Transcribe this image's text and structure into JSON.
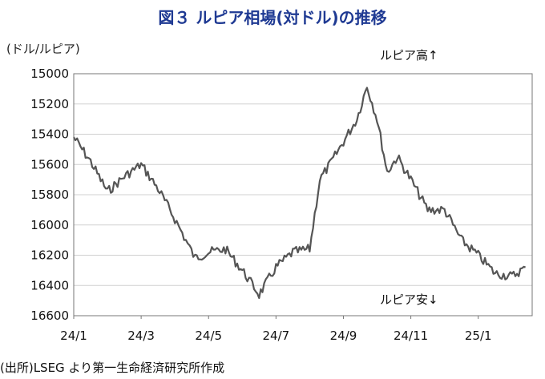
{
  "chart_data": {
    "type": "line",
    "title": "図３ ルピア相場(対ドル)の推移",
    "ylabel": "(ドル/ルピア)",
    "ylim": [
      15000,
      16600
    ],
    "y_inverted": true,
    "yticks": [
      15000,
      15200,
      15400,
      15600,
      15800,
      16000,
      16200,
      16400,
      16600
    ],
    "xticks": [
      "24/1",
      "24/3",
      "24/5",
      "24/7",
      "24/9",
      "24/11",
      "25/1"
    ],
    "grid": "horizontal",
    "annotations": {
      "top": "ルピア高↑",
      "bottom": "ルピア安↓"
    },
    "series": [
      {
        "color": "#555555",
        "points": [
          [
            "24/1",
            15420
          ],
          [
            "24/1.5",
            15580
          ],
          [
            "24/2",
            15780
          ],
          [
            "24/2.5",
            15680
          ],
          [
            "24/3",
            15600
          ],
          [
            "24/3.5",
            15760
          ],
          [
            "24/4",
            15960
          ],
          [
            "24/4.6",
            16220
          ],
          [
            "24/5",
            16180
          ],
          [
            "24/5.5",
            16160
          ],
          [
            "24/6",
            16300
          ],
          [
            "24/6.5",
            16460
          ],
          [
            "24/7",
            16280
          ],
          [
            "24/7.5",
            16180
          ],
          [
            "24/8",
            16160
          ],
          [
            "24/8.3",
            15700
          ],
          [
            "24/8.6",
            15600
          ],
          [
            "24/9",
            15450
          ],
          [
            "24/9.4",
            15300
          ],
          [
            "24/9.7",
            15080
          ],
          [
            "24/10",
            15300
          ],
          [
            "24/10.3",
            15650
          ],
          [
            "24/10.6",
            15550
          ],
          [
            "24/11",
            15700
          ],
          [
            "24/11.5",
            15900
          ],
          [
            "24/12",
            15900
          ],
          [
            "24/12.5",
            16100
          ],
          [
            "25/1",
            16200
          ],
          [
            "25/1.5",
            16320
          ],
          [
            "25/2",
            16340
          ],
          [
            "25/2.4",
            16280
          ]
        ]
      }
    ]
  },
  "footer": {
    "source": "(出所)LSEG より第一生命経済研究所作成"
  }
}
